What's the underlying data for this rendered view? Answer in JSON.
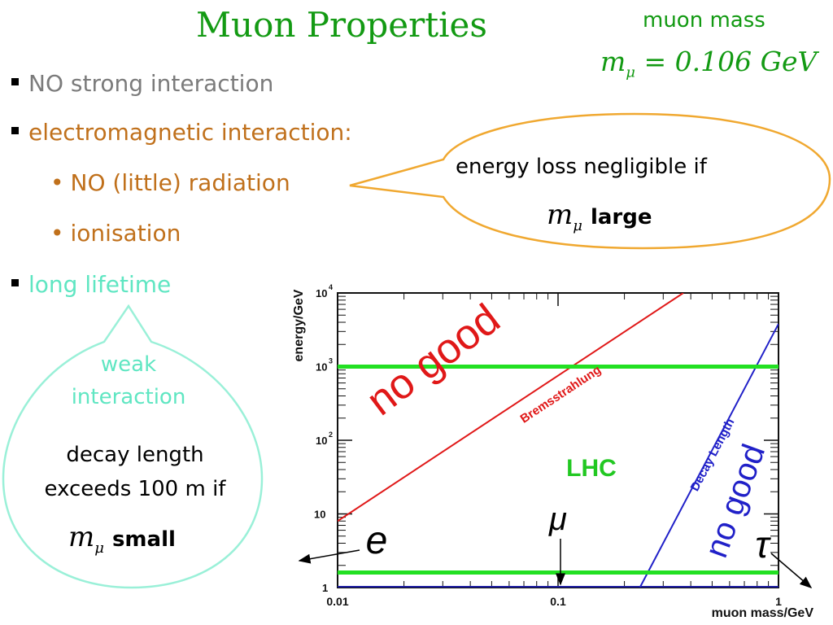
{
  "slide": {
    "title": "Muon Properties",
    "mass_label": "muon mass",
    "mass_symbol": "m",
    "mass_subscript": "μ",
    "mass_value": "= 0.106 GeV",
    "bullets": [
      {
        "text": "NO strong interaction"
      },
      {
        "text": "electromagnetic interaction:"
      },
      {
        "text": "NO (little) radiation"
      },
      {
        "text": "ionisation"
      },
      {
        "text": "long lifetime"
      }
    ],
    "sub_bullet_marker": "•",
    "energy_bubble": {
      "line1": "energy loss negligible if",
      "condition": "large"
    },
    "lifetime_bubble": {
      "label_line1": "weak",
      "label_line2": "interaction",
      "line1": "decay length",
      "line2": "exceeds 100 m if",
      "condition": "small"
    },
    "colors": {
      "title": "#139a13",
      "grey": "#7b7b7b",
      "orange": "#c0701b",
      "cyan": "#5fe6c2",
      "bubble_orange": "#f0a830",
      "bubble_cyan": "#9af0d8"
    }
  },
  "chart_data": {
    "type": "line",
    "x_scale": "log",
    "y_scale": "log",
    "xlim": [
      0.01,
      1
    ],
    "ylim": [
      1,
      10000
    ],
    "xlabel": "muon mass/GeV",
    "ylabel": "energy/GeV",
    "x_ticks": [
      {
        "value": 0.01,
        "label": "0.01"
      },
      {
        "value": 0.1,
        "label": "0.1"
      },
      {
        "value": 1,
        "label": "1"
      }
    ],
    "y_ticks": [
      {
        "value": 1,
        "label": "1",
        "exp": ""
      },
      {
        "value": 10,
        "label": "10",
        "exp": ""
      },
      {
        "value": 100,
        "label": "10",
        "exp": "2"
      },
      {
        "value": 1000,
        "label": "10",
        "exp": "3"
      },
      {
        "value": 10000,
        "label": "10",
        "exp": "4"
      }
    ],
    "series": [
      {
        "name": "Bremsstrahlung",
        "color": "#e01818",
        "points": [
          [
            0.01,
            8
          ],
          [
            0.37,
            10000
          ]
        ]
      },
      {
        "name": "Decay Length",
        "color": "#2020c8",
        "points": [
          [
            0.235,
            1
          ],
          [
            1,
            3800
          ]
        ]
      }
    ],
    "hlines": [
      {
        "y": 1000,
        "color": "#22e022"
      },
      {
        "y": 1.6,
        "color": "#22e022"
      }
    ],
    "bottom_line": {
      "y": 1,
      "color": "#1a1aa0"
    },
    "annotations": {
      "no_good_left": "no good",
      "no_good_right": "no good",
      "lhc": "LHC",
      "electron": "e",
      "muon": "μ",
      "tau": "τ"
    }
  }
}
